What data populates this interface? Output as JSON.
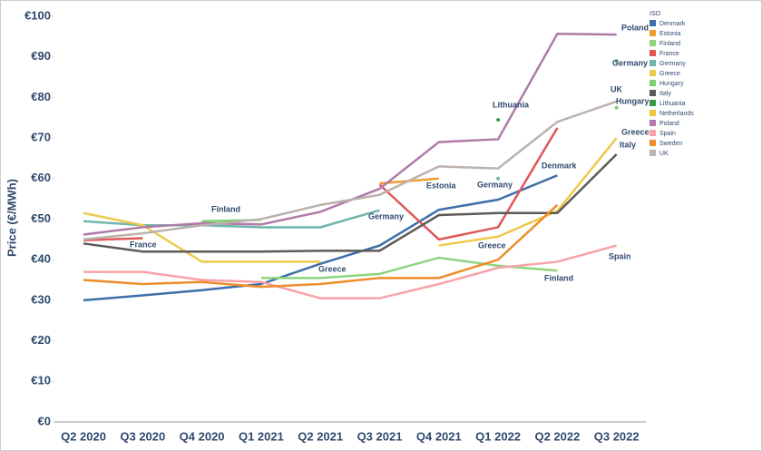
{
  "chart_data": {
    "type": "line",
    "y_label": "Price (€/MWh)",
    "categories": [
      "Q2 2020",
      "Q3 2020",
      "Q4 2020",
      "Q1 2021",
      "Q2 2021",
      "Q3 2021",
      "Q4 2021",
      "Q1 2022",
      "Q2 2022",
      "Q3 2022"
    ],
    "ylim": [
      0,
      100
    ],
    "yticks": [
      {
        "value": 0,
        "label": "€0"
      },
      {
        "value": 10,
        "label": "€10"
      },
      {
        "value": 20,
        "label": "€20"
      },
      {
        "value": 30,
        "label": "€30"
      },
      {
        "value": 40,
        "label": "€40"
      },
      {
        "value": 50,
        "label": "€50"
      },
      {
        "value": 60,
        "label": "€60"
      },
      {
        "value": 70,
        "label": "€70"
      },
      {
        "value": 80,
        "label": "€80"
      },
      {
        "value": 90,
        "label": "€90"
      },
      {
        "value": 100,
        "label": "€100"
      }
    ],
    "grid": false,
    "legend_title": "ISO",
    "legend": "top-right",
    "series": [
      {
        "name": "Denmark",
        "color": "#3d6fa8",
        "values": [
          30,
          31.2,
          32.5,
          34,
          39,
          43.5,
          52.3,
          54.8,
          60.8,
          null
        ]
      },
      {
        "name": "Estonia",
        "color": "#f29b30",
        "values": [
          null,
          null,
          null,
          null,
          null,
          58.8,
          60,
          null,
          null,
          null
        ]
      },
      {
        "name": "Finland",
        "color": "#8fd47f",
        "values": [
          null,
          null,
          null,
          35.5,
          35.5,
          36.5,
          40.5,
          38.5,
          37.3,
          null
        ]
      },
      {
        "name": "France",
        "color": "#e15759",
        "values": [
          44.8,
          45.3,
          null,
          null,
          null,
          58.5,
          45,
          48,
          72.5,
          null
        ]
      },
      {
        "name": "Germany",
        "color": "#6fb5ad",
        "values": [
          49.5,
          48.5,
          48.5,
          48,
          48,
          52.2,
          null,
          60,
          null,
          89
        ]
      },
      {
        "name": "Greece",
        "color": "#edc948",
        "values": [
          51.5,
          48.5,
          39.5,
          39.5,
          39.5,
          null,
          43.5,
          45.7,
          52,
          70
        ]
      },
      {
        "name": "Hungary",
        "color": "#7ccf6e",
        "values": [
          null,
          null,
          49.5,
          49.8,
          null,
          null,
          null,
          null,
          null,
          77.5
        ]
      },
      {
        "name": "Italy",
        "color": "#5e5a58",
        "values": [
          44,
          42,
          42,
          42,
          42.2,
          42.2,
          51,
          51.5,
          51.5,
          66
        ]
      },
      {
        "name": "Lithuania",
        "color": "#3a9a44",
        "values": [
          null,
          null,
          null,
          null,
          null,
          null,
          null,
          74.5,
          null,
          null
        ]
      },
      {
        "name": "Netherlands",
        "color": "#f0c93a",
        "values": [
          null,
          null,
          null,
          null,
          null,
          null,
          null,
          null,
          null,
          null
        ]
      },
      {
        "name": "Poland",
        "color": "#b07aa8",
        "values": [
          46.2,
          48,
          49,
          48.7,
          51.8,
          57.5,
          69,
          69.7,
          95.7,
          95.5
        ]
      },
      {
        "name": "Spain",
        "color": "#f7a2a8",
        "values": [
          37,
          37,
          35,
          34.5,
          30.5,
          30.5,
          34,
          38,
          39.5,
          43.5
        ]
      },
      {
        "name": "Sweden",
        "color": "#ef8c2a",
        "values": [
          35,
          34,
          34.5,
          33.3,
          34,
          35.5,
          35.5,
          40,
          53.5,
          null
        ]
      },
      {
        "name": "UK",
        "color": "#bcb2ad",
        "values": [
          45,
          46.5,
          48.5,
          50,
          53.5,
          56,
          63,
          62.5,
          74,
          79
        ]
      }
    ],
    "annotations": [
      "Poland",
      "Germany",
      "UK",
      "Hungary",
      "Lithuania",
      "Greece",
      "Italy",
      "Denmark",
      "Germany",
      "Estonia",
      "Finland",
      "Germany",
      "France",
      "Greece",
      "Greece",
      "Spain",
      "Finland"
    ]
  }
}
